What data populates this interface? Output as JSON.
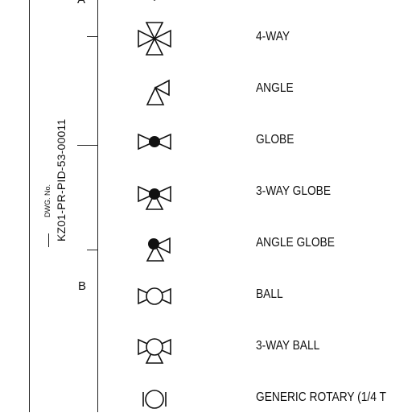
{
  "title_block": {
    "zone_top": "A",
    "zone_b": "B",
    "dwg_label": "DWG. No.",
    "drawing_number": "KZ01-PR-PID-53-00011"
  },
  "legend": [
    {
      "symbol": "4-way-valve",
      "label": "4-WAY"
    },
    {
      "symbol": "angle-valve",
      "label": "ANGLE"
    },
    {
      "symbol": "globe-valve",
      "label": "GLOBE"
    },
    {
      "symbol": "3-way-globe-valve",
      "label": "3-WAY GLOBE"
    },
    {
      "symbol": "angle-globe-valve",
      "label": "ANGLE GLOBE"
    },
    {
      "symbol": "ball-valve",
      "label": "BALL"
    },
    {
      "symbol": "3-way-ball-valve",
      "label": "3-WAY BALL"
    },
    {
      "symbol": "generic-rotary-valve",
      "label": "GENERIC ROTARY (1/4 T"
    }
  ]
}
